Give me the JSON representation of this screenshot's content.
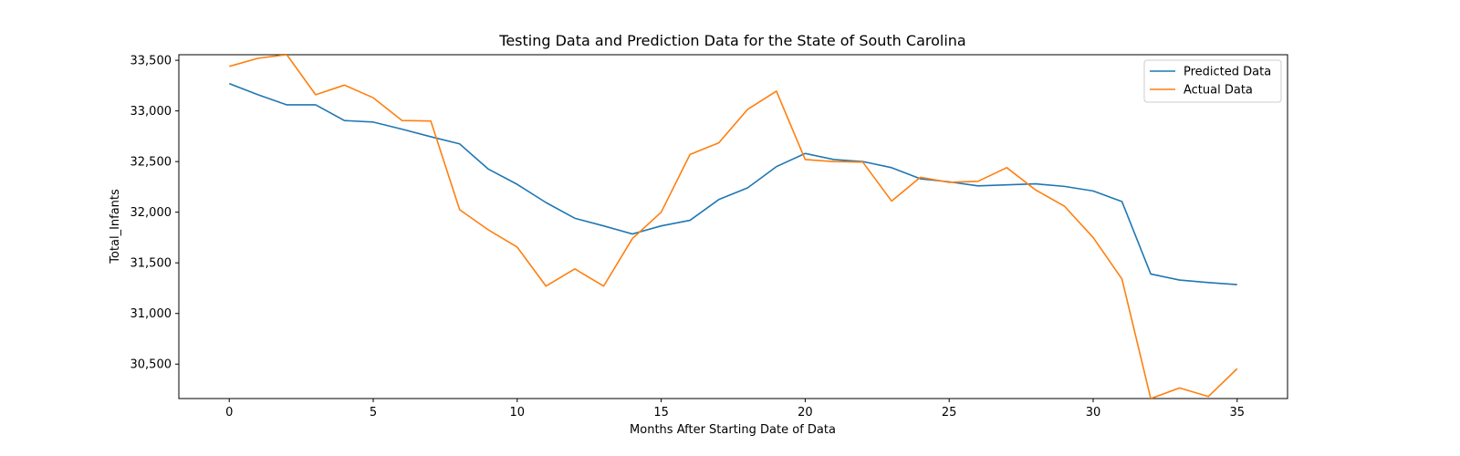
{
  "chart_data": {
    "type": "line",
    "title": "Testing Data and Prediction Data for the State of South Carolina",
    "xlabel": "Months After Starting Date of Data",
    "ylabel": "Total_Infants",
    "xlim": [
      -1.75,
      36.75
    ],
    "ylim": [
      30160,
      33555
    ],
    "x_ticks": [
      0,
      5,
      10,
      15,
      20,
      25,
      30,
      35
    ],
    "x_tick_labels": [
      "0",
      "5",
      "10",
      "15",
      "20",
      "25",
      "30",
      "35"
    ],
    "y_ticks": [
      30500,
      31000,
      31500,
      32000,
      32500,
      33000,
      33500
    ],
    "y_tick_labels": [
      "30,500",
      "31,000",
      "31,500",
      "32,000",
      "32,500",
      "33,000",
      "33,500"
    ],
    "grid": false,
    "legend_position": "upper right",
    "x": [
      0,
      1,
      2,
      3,
      4,
      5,
      6,
      7,
      8,
      9,
      10,
      11,
      12,
      13,
      14,
      15,
      16,
      17,
      18,
      19,
      20,
      21,
      22,
      23,
      24,
      25,
      26,
      27,
      28,
      29,
      30,
      31,
      32,
      33,
      34,
      35
    ],
    "series": [
      {
        "name": "Predicted Data",
        "color": "#1f77b4",
        "values": [
          33270,
          33160,
          33060,
          33060,
          32905,
          32890,
          32820,
          32745,
          32675,
          32425,
          32275,
          32095,
          31940,
          31865,
          31785,
          31865,
          31920,
          32125,
          32240,
          32450,
          32580,
          32520,
          32500,
          32440,
          32330,
          32300,
          32260,
          32270,
          32280,
          32255,
          32210,
          32105,
          31390,
          31330,
          31305,
          31285
        ]
      },
      {
        "name": "Actual Data",
        "color": "#ff7f0e",
        "values": [
          33440,
          33520,
          33555,
          33160,
          33255,
          33130,
          32905,
          32900,
          32025,
          31825,
          31655,
          31270,
          31440,
          31270,
          31740,
          32000,
          32570,
          32685,
          33015,
          33195,
          32520,
          32500,
          32495,
          32110,
          32345,
          32295,
          32305,
          32440,
          32220,
          32060,
          31750,
          31340,
          30160,
          30265,
          30180,
          30455
        ]
      }
    ]
  }
}
